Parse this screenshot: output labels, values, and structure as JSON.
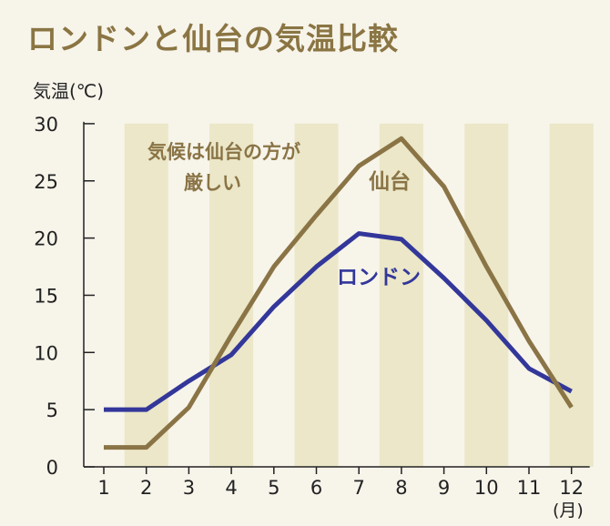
{
  "chart_data": {
    "type": "line",
    "title": "ロンドンと仙台の気温比較",
    "ylabel": "気温(℃)",
    "xunit": "(月)",
    "ylim": [
      0,
      30
    ],
    "yticks": [
      0,
      5,
      10,
      15,
      20,
      25,
      30
    ],
    "categories": [
      "1",
      "2",
      "3",
      "4",
      "5",
      "6",
      "7",
      "8",
      "9",
      "10",
      "11",
      "12"
    ],
    "series": [
      {
        "name": "ロンドン",
        "color": "#33379a",
        "values": [
          5,
          5,
          7.5,
          9.8,
          14,
          17.5,
          20.4,
          19.9,
          16.5,
          12.8,
          8.6,
          6.6
        ]
      },
      {
        "name": "仙台",
        "color": "#8a7446",
        "values": [
          1.7,
          1.7,
          5.2,
          11.5,
          17.5,
          22,
          26.3,
          28.7,
          24.5,
          17.5,
          11,
          5.2
        ]
      }
    ],
    "annotations": [
      {
        "line1": "気候は仙台の方が",
        "line2": "厳しい"
      }
    ],
    "background_stripes": true,
    "stripe_color": "#ebe7c8"
  }
}
